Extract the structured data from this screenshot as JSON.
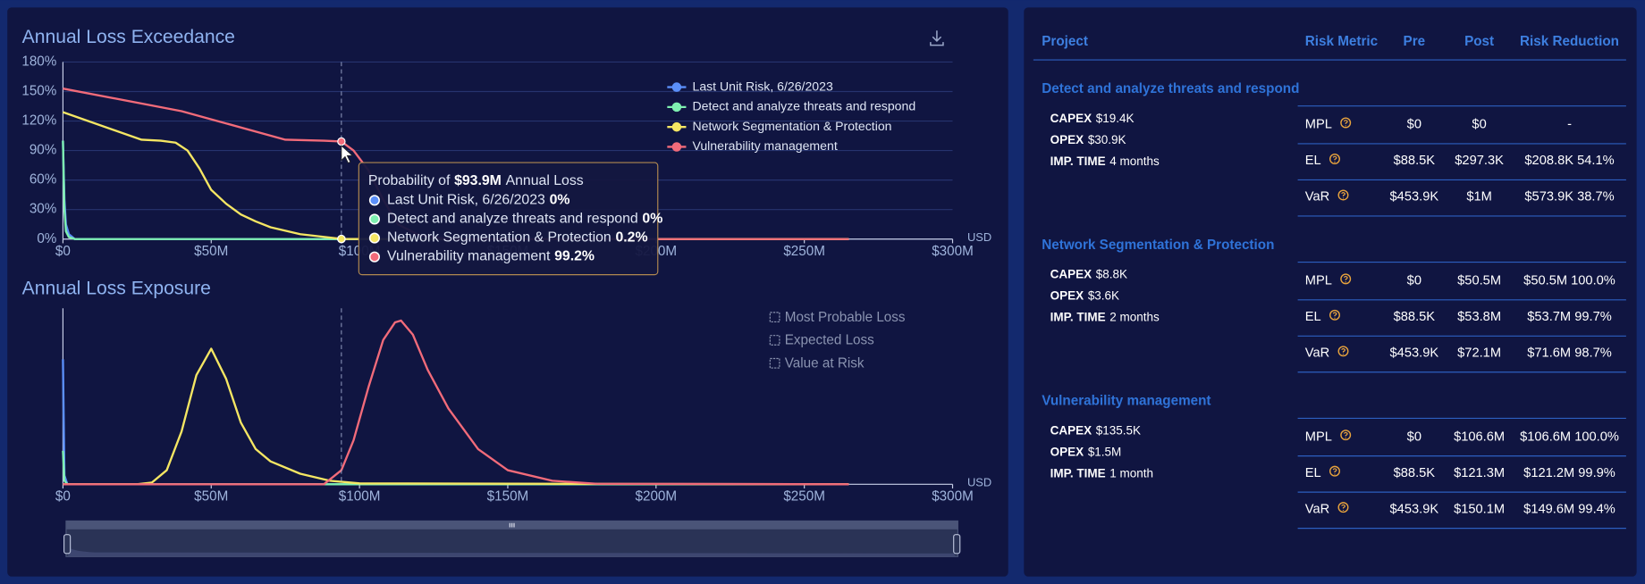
{
  "chart_data": [
    {
      "type": "line",
      "title": "Annual Loss Exceedance",
      "x_unit": "USD",
      "xlim": [
        0,
        300000000
      ],
      "xticks": [
        {
          "value": 0,
          "label": "$0"
        },
        {
          "value": 50000000,
          "label": "$50M"
        },
        {
          "value": 100000000,
          "label": "$100M"
        },
        {
          "value": 150000000,
          "label": "$150M"
        },
        {
          "value": 200000000,
          "label": "$200M"
        },
        {
          "value": 250000000,
          "label": "$250M"
        },
        {
          "value": 300000000,
          "label": "$300M"
        }
      ],
      "ylim": [
        0,
        180
      ],
      "yticks": [
        {
          "value": 0,
          "label": "0%"
        },
        {
          "value": 30,
          "label": "30%"
        },
        {
          "value": 60,
          "label": "60%"
        },
        {
          "value": 90,
          "label": "90%"
        },
        {
          "value": 120,
          "label": "120%"
        },
        {
          "value": 150,
          "label": "150%"
        },
        {
          "value": 180,
          "label": "180%"
        }
      ],
      "grid": true,
      "legend": "top-right",
      "series": [
        {
          "name": "Last Unit Risk, 6/26/2023",
          "color": "#5b8ff9",
          "x": [
            0,
            500000,
            1000000,
            2000000,
            4000000,
            265000000
          ],
          "values": [
            100,
            40,
            15,
            5,
            0,
            0
          ]
        },
        {
          "name": "Detect and analyze threats and respond",
          "color": "#7ef0b0",
          "x": [
            0,
            500000,
            1000000,
            2000000,
            4000000,
            265000000
          ],
          "values": [
            100,
            30,
            8,
            2,
            0,
            0
          ]
        },
        {
          "name": "Network Segmentation & Protection",
          "color": "#f5e663",
          "x": [
            0,
            26500000,
            33000000,
            38000000,
            42000000,
            46000000,
            50000000,
            55000000,
            60000000,
            65000000,
            70000000,
            80000000,
            93900000,
            110000000,
            265000000
          ],
          "values": [
            129,
            101,
            100,
            98,
            90,
            72,
            50,
            36,
            25,
            18,
            12,
            5,
            0.2,
            0,
            0
          ]
        },
        {
          "name": "Vulnerability management",
          "color": "#f26b7a",
          "x": [
            0,
            40000000,
            75000000,
            88000000,
            93900000,
            98000000,
            103000000,
            108000000,
            113000000,
            120000000,
            130000000,
            265000000
          ],
          "values": [
            153,
            130,
            101,
            100,
            99.2,
            90,
            70,
            40,
            15,
            4,
            0,
            0
          ]
        }
      ],
      "tooltip": {
        "prefix": "Probability of",
        "x": 93900000,
        "x_label": "$93.9M",
        "suffix": "Annual Loss",
        "values": [
          0,
          0,
          0.2,
          99.2
        ],
        "value_labels": [
          "0%",
          "0%",
          "0.2%",
          "99.2%"
        ]
      }
    },
    {
      "type": "line",
      "title": "Annual Loss Exposure",
      "x_unit": "USD",
      "xlim": [
        0,
        300000000
      ],
      "xticks": [
        {
          "value": 0,
          "label": "$0"
        },
        {
          "value": 50000000,
          "label": "$50M"
        },
        {
          "value": 100000000,
          "label": "$100M"
        },
        {
          "value": 150000000,
          "label": "$150M"
        },
        {
          "value": 200000000,
          "label": "$200M"
        },
        {
          "value": 250000000,
          "label": "$250M"
        },
        {
          "value": 300000000,
          "label": "$300M"
        }
      ],
      "ylim": [
        0,
        1
      ],
      "toggles": [
        "Most Probable Loss",
        "Expected Loss",
        "Value at Risk"
      ],
      "series": [
        {
          "color": "#5b8ff9",
          "x": [
            0,
            500000,
            1500000,
            265000000
          ],
          "values": [
            0.71,
            0.05,
            0,
            0
          ]
        },
        {
          "color": "#7ef0b0",
          "x": [
            0,
            500000,
            1500000,
            265000000
          ],
          "values": [
            0.19,
            0.02,
            0,
            0
          ]
        },
        {
          "color": "#f5e663",
          "x": [
            0,
            25000000,
            30000000,
            35000000,
            40000000,
            45000000,
            50000000,
            55000000,
            60000000,
            65000000,
            70000000,
            80000000,
            90000000,
            100000000,
            265000000
          ],
          "values": [
            0,
            0,
            0.01,
            0.08,
            0.3,
            0.62,
            0.77,
            0.6,
            0.35,
            0.2,
            0.13,
            0.06,
            0.02,
            0.005,
            0
          ]
        },
        {
          "color": "#f26b7a",
          "x": [
            0,
            88000000,
            93900000,
            98000000,
            103000000,
            108000000,
            112000000,
            114000000,
            118000000,
            123000000,
            130000000,
            140000000,
            150000000,
            165000000,
            180000000,
            265000000
          ],
          "values": [
            0,
            0,
            0.08,
            0.25,
            0.55,
            0.82,
            0.92,
            0.93,
            0.85,
            0.65,
            0.43,
            0.2,
            0.08,
            0.02,
            0.003,
            0
          ]
        }
      ]
    }
  ],
  "table": {
    "header": [
      "Project",
      "Risk Metric",
      "Pre",
      "Post",
      "Risk Reduction"
    ],
    "projects": [
      {
        "name": "Detect and analyze threats and respond",
        "details": [
          {
            "label": "CAPEX",
            "value": "$19.4K"
          },
          {
            "label": "OPEX",
            "value": "$30.9K"
          },
          {
            "label": "IMP. TIME",
            "value": "4 months"
          }
        ],
        "rows": [
          [
            "MPL",
            "$0",
            "$0",
            "-"
          ],
          [
            "EL",
            "$88.5K",
            "$297.3K",
            "$208.8K 54.1%"
          ],
          [
            "VaR",
            "$453.9K",
            "$1M",
            "$573.9K 38.7%"
          ]
        ]
      },
      {
        "name": "Network Segmentation & Protection",
        "details": [
          {
            "label": "CAPEX",
            "value": "$8.8K"
          },
          {
            "label": "OPEX",
            "value": "$3.6K"
          },
          {
            "label": "IMP. TIME",
            "value": "2 months"
          }
        ],
        "rows": [
          [
            "MPL",
            "$0",
            "$50.5M",
            "$50.5M 100.0%"
          ],
          [
            "EL",
            "$88.5K",
            "$53.8M",
            "$53.7M 99.7%"
          ],
          [
            "VaR",
            "$453.9K",
            "$72.1M",
            "$71.6M 98.7%"
          ]
        ]
      },
      {
        "name": "Vulnerability management",
        "details": [
          {
            "label": "CAPEX",
            "value": "$135.5K"
          },
          {
            "label": "OPEX",
            "value": "$1.5M"
          },
          {
            "label": "IMP. TIME",
            "value": "1 month"
          }
        ],
        "rows": [
          [
            "MPL",
            "$0",
            "$106.6M",
            "$106.6M 100.0%"
          ],
          [
            "EL",
            "$88.5K",
            "$121.3M",
            "$121.2M 99.9%"
          ],
          [
            "VaR",
            "$453.9K",
            "$150.1M",
            "$149.6M 99.4%"
          ]
        ]
      }
    ]
  }
}
